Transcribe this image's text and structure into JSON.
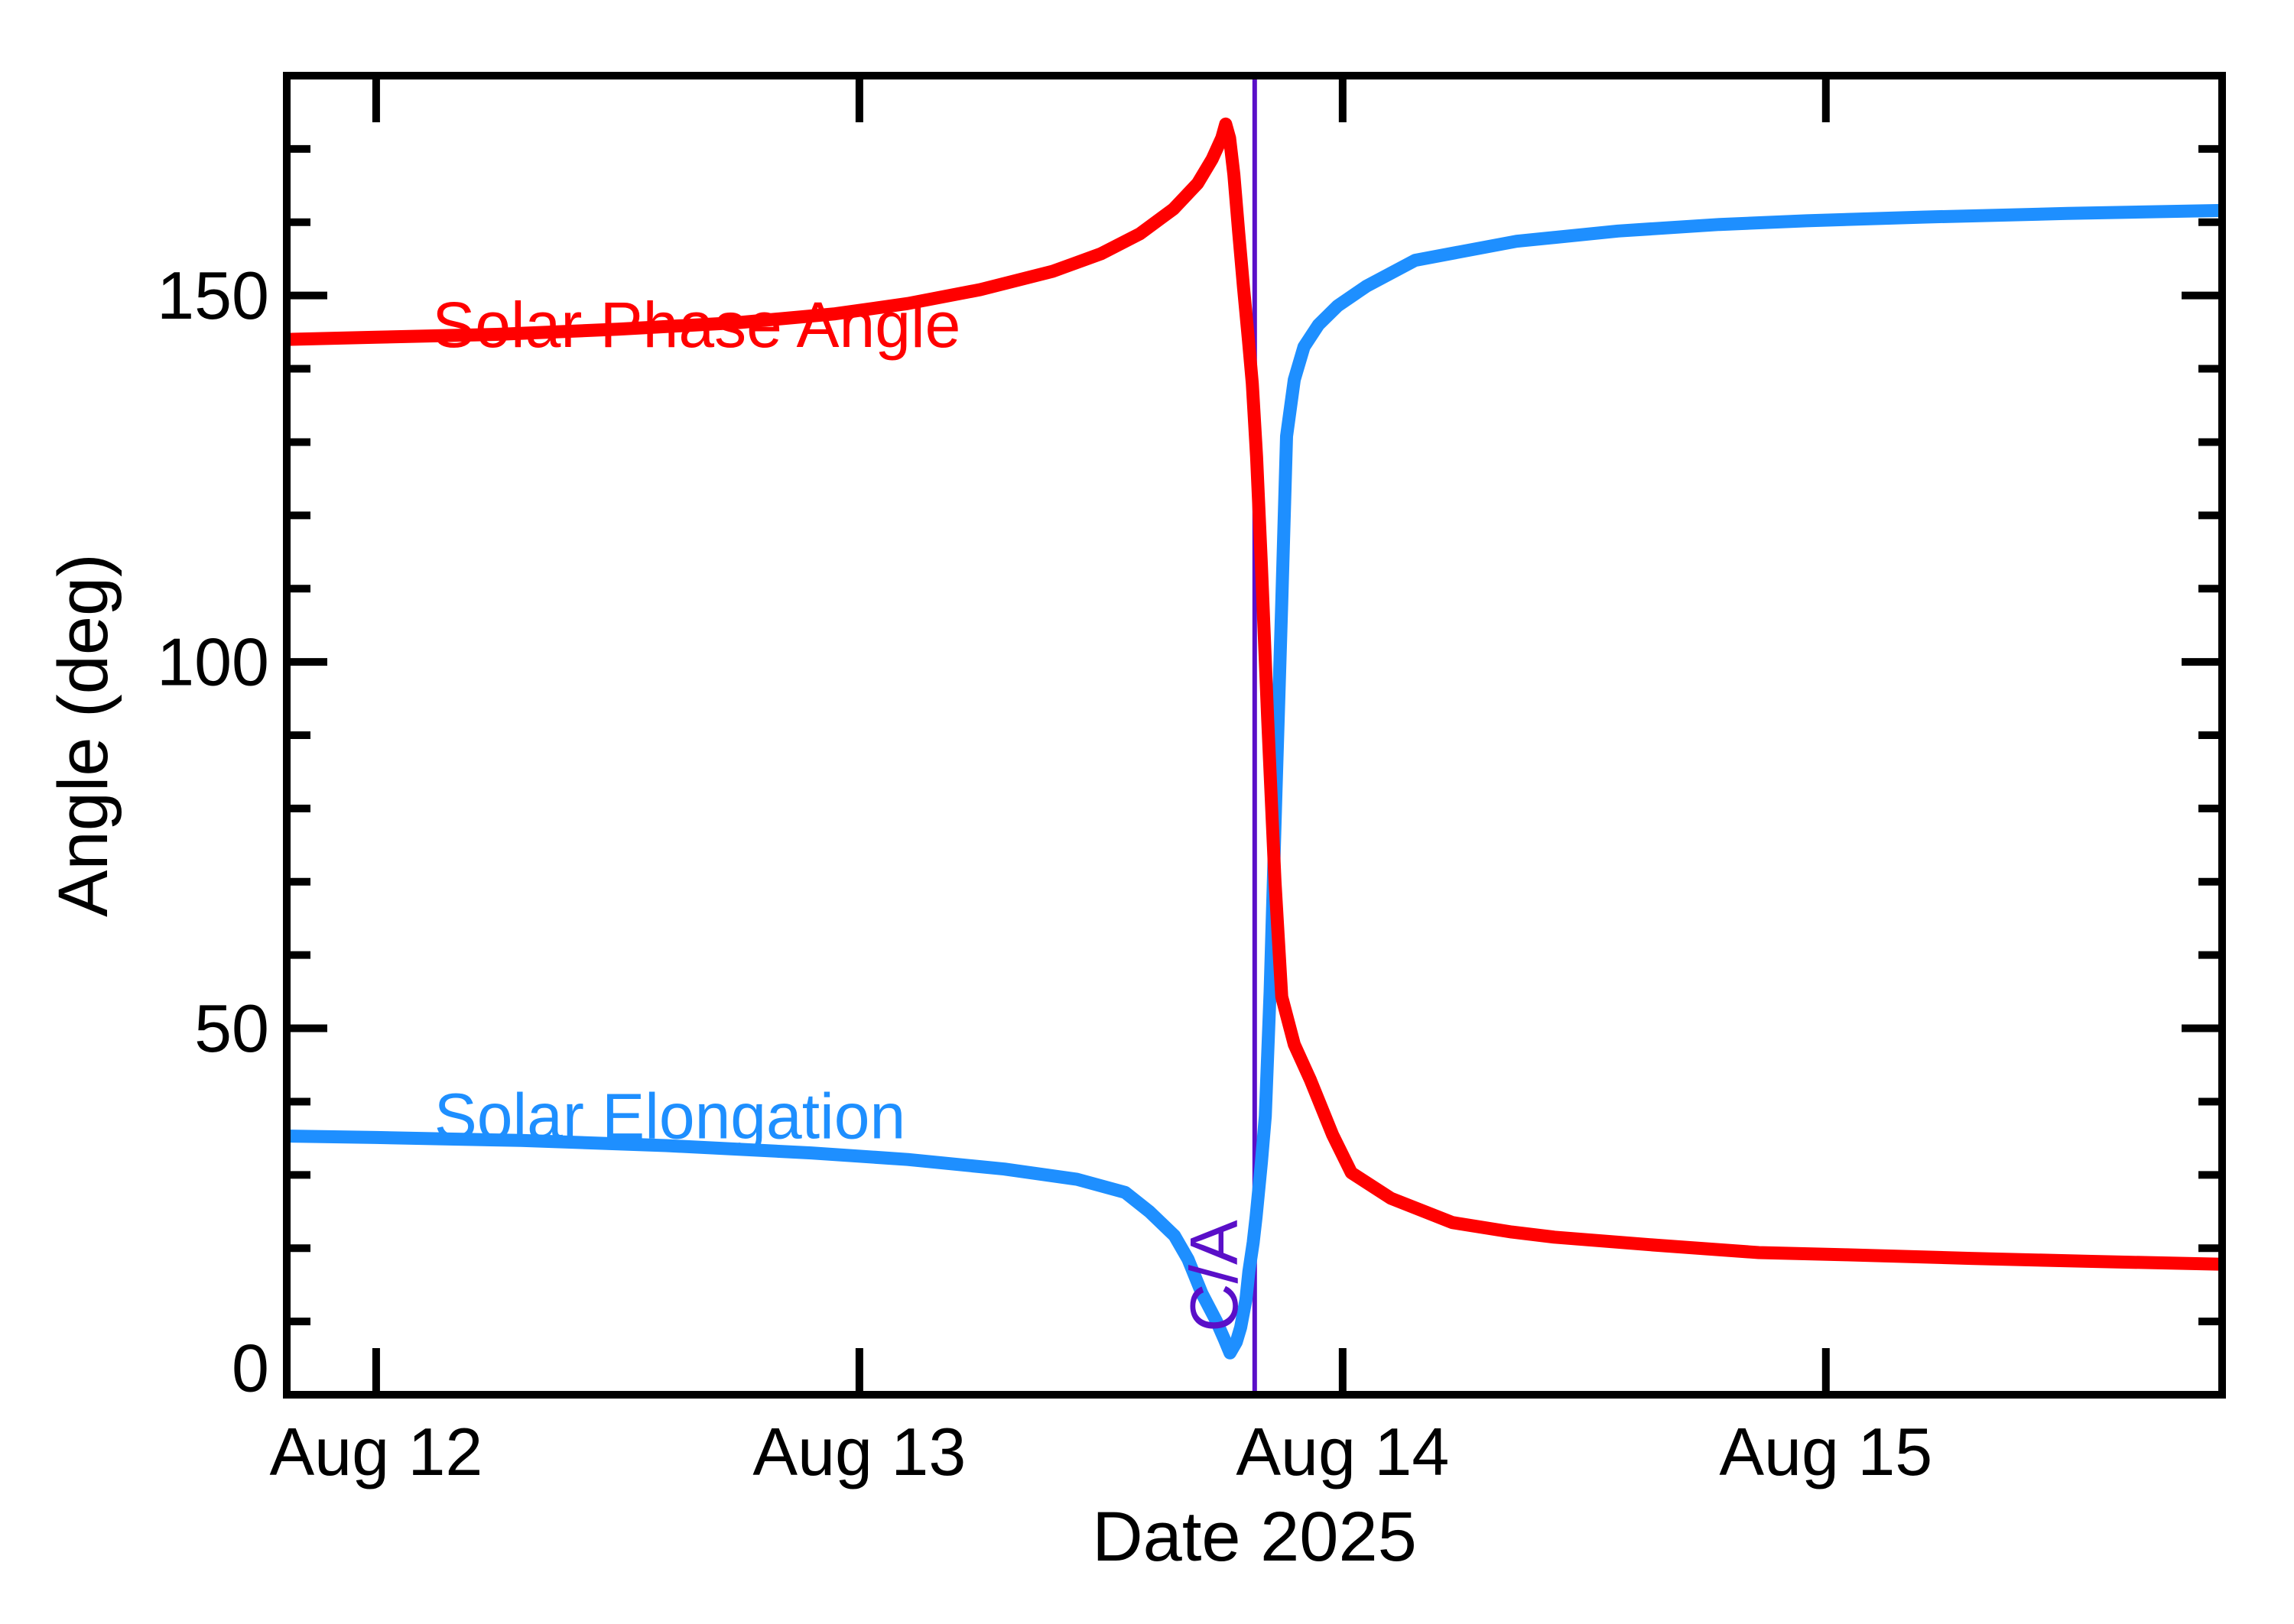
{
  "figure": {
    "background": "#ffffff",
    "axis_color": "#000000"
  },
  "chart_data": {
    "type": "line",
    "title": "",
    "xlabel": "Date 2025",
    "ylabel": "Angle (deg)",
    "xlim": [
      -0.185,
      3.82
    ],
    "ylim": [
      0,
      180
    ],
    "grid": false,
    "legend_position": "inline-curve-labels",
    "x_ticks": [
      {
        "t": 0,
        "label": "Aug 12"
      },
      {
        "t": 1,
        "label": "Aug 13"
      },
      {
        "t": 2,
        "label": "Aug 14"
      },
      {
        "t": 3,
        "label": "Aug 15"
      }
    ],
    "y_ticks": [
      {
        "v": 0,
        "label": "0",
        "label_dy": -35
      },
      {
        "v": 50,
        "label": "50",
        "label_dy": 0
      },
      {
        "v": 100,
        "label": "100",
        "label_dy": 0
      },
      {
        "v": 150,
        "label": "150",
        "label_dy": 0
      }
    ],
    "y_minor_step": 10,
    "series": [
      {
        "name": "Solar Elongation",
        "color": "#1e8fff",
        "label": "Solar Elongation",
        "label_anchor": {
          "t": 0.12,
          "deg": 35.0
        },
        "points": [
          [
            -0.185,
            35.3
          ],
          [
            0.0,
            35.1
          ],
          [
            0.3,
            34.7
          ],
          [
            0.6,
            34.0
          ],
          [
            0.9,
            33.0
          ],
          [
            1.1,
            32.1
          ],
          [
            1.3,
            30.8
          ],
          [
            1.45,
            29.4
          ],
          [
            1.55,
            27.6
          ],
          [
            1.6,
            25.0
          ],
          [
            1.652,
            21.7
          ],
          [
            1.68,
            18.5
          ],
          [
            1.709,
            13.8
          ],
          [
            1.739,
            10.0
          ],
          [
            1.755,
            7.6
          ],
          [
            1.767,
            5.7
          ],
          [
            1.78,
            7.2
          ],
          [
            1.789,
            9.2
          ],
          [
            1.8,
            13.0
          ],
          [
            1.806,
            16.8
          ],
          [
            1.815,
            20.8
          ],
          [
            1.821,
            24.3
          ],
          [
            1.832,
            31.8
          ],
          [
            1.84,
            38.0
          ],
          [
            1.85,
            55.0
          ],
          [
            1.862,
            82.0
          ],
          [
            1.874,
            108.0
          ],
          [
            1.884,
            130.8
          ],
          [
            1.9,
            138.5
          ],
          [
            1.92,
            143.0
          ],
          [
            1.95,
            146.0
          ],
          [
            1.99,
            148.6
          ],
          [
            2.05,
            151.3
          ],
          [
            2.15,
            154.8
          ],
          [
            2.36,
            157.4
          ],
          [
            2.57,
            158.8
          ],
          [
            2.78,
            159.7
          ],
          [
            2.96,
            160.2
          ],
          [
            3.2,
            160.7
          ],
          [
            3.5,
            161.2
          ],
          [
            3.82,
            161.6
          ]
        ]
      },
      {
        "name": "Solar Phase Angle",
        "color": "#ff0000",
        "label": "Solar Phase Angle",
        "label_anchor": {
          "t": 0.116,
          "deg": 143.0
        },
        "points": [
          [
            -0.185,
            144.0
          ],
          [
            0.0,
            144.3
          ],
          [
            0.25,
            144.7
          ],
          [
            0.5,
            145.4
          ],
          [
            0.75,
            146.3
          ],
          [
            0.95,
            147.5
          ],
          [
            1.1,
            148.9
          ],
          [
            1.25,
            150.8
          ],
          [
            1.4,
            153.3
          ],
          [
            1.5,
            155.7
          ],
          [
            1.58,
            158.4
          ],
          [
            1.65,
            161.8
          ],
          [
            1.7,
            165.3
          ],
          [
            1.73,
            168.6
          ],
          [
            1.75,
            171.5
          ],
          [
            1.758,
            173.4
          ],
          [
            1.766,
            171.5
          ],
          [
            1.775,
            166.5
          ],
          [
            1.785,
            158.5
          ],
          [
            1.795,
            151.0
          ],
          [
            1.805,
            144.0
          ],
          [
            1.813,
            138.0
          ],
          [
            1.822,
            128.0
          ],
          [
            1.832,
            113.0
          ],
          [
            1.845,
            92.0
          ],
          [
            1.86,
            70.0
          ],
          [
            1.874,
            54.3
          ],
          [
            1.9,
            47.8
          ],
          [
            1.933,
            43.0
          ],
          [
            1.979,
            35.5
          ],
          [
            2.018,
            30.3
          ],
          [
            2.1,
            26.8
          ],
          [
            2.227,
            23.5
          ],
          [
            2.35,
            22.2
          ],
          [
            2.438,
            21.5
          ],
          [
            2.65,
            20.4
          ],
          [
            2.861,
            19.4
          ],
          [
            3.043,
            19.1
          ],
          [
            3.3,
            18.6
          ],
          [
            3.55,
            18.2
          ],
          [
            3.82,
            17.8
          ]
        ]
      }
    ],
    "annotations": {
      "close_approach": {
        "t": 1.818,
        "line_color": "#5a0fc8",
        "label": "C/A",
        "label_color": "#5a0fc8",
        "label_rotation_deg": -90,
        "label_pos": {
          "t": 1.782,
          "deg": 16.2
        }
      }
    }
  }
}
